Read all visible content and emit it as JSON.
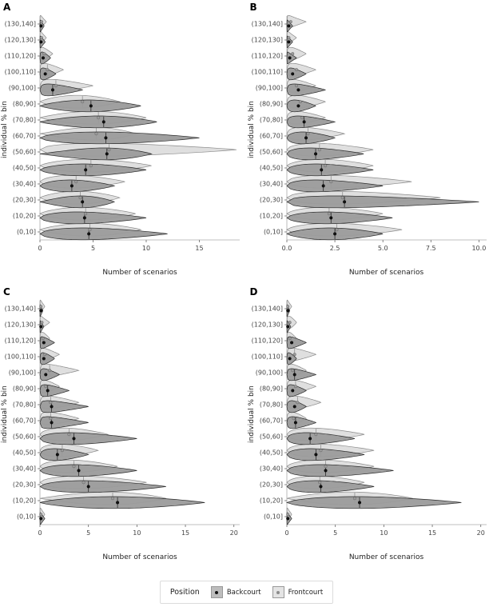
{
  "figure": {
    "legend": {
      "title": "Position",
      "items": [
        {
          "label": "Backcourt"
        },
        {
          "label": "Frontcourt"
        }
      ]
    },
    "colors": {
      "backcourt_fill": "#9b9b9b",
      "backcourt_stroke": "#2a2a2a",
      "backcourt_point": "#111111",
      "frontcourt_fill": "#dcdcdc",
      "frontcourt_stroke": "#8a8a8a",
      "frontcourt_point": "#9a9a9a",
      "axis_text": "#444444",
      "axis_line": "#aaaaaa"
    }
  },
  "violin_format": [
    "max",
    "peak",
    "mean"
  ],
  "chart_data": [
    {
      "panel": "A",
      "type": "violin",
      "xlabel": "Number of scenarios",
      "ylabel": "individual % bin",
      "xlim": [
        0,
        18.8
      ],
      "xticks": [
        0,
        5,
        10,
        15
      ],
      "xtick_labels": [
        "0",
        "5",
        "10",
        "15"
      ],
      "categories": [
        "(130,140]",
        "(120,130]",
        "(110,120]",
        "(100,110]",
        "(90,100]",
        "(80,90]",
        "(70,80]",
        "(60,70]",
        "(50,60]",
        "(40,50]",
        "(30,40]",
        "(20,30]",
        "(10,20]",
        "(0,10]"
      ],
      "series": [
        {
          "name": "Backcourt",
          "violins": [
            [
              0.4,
              0,
              0.1
            ],
            [
              0.5,
              0,
              0.1
            ],
            [
              1.0,
              0.2,
              0.3
            ],
            [
              1.5,
              0.3,
              0.5
            ],
            [
              4.0,
              0.8,
              1.2
            ],
            [
              9.5,
              4.5,
              4.8
            ],
            [
              11.0,
              5.5,
              6.0
            ],
            [
              15.0,
              5.5,
              6.2
            ],
            [
              10.5,
              6.0,
              6.3
            ],
            [
              10.0,
              4.0,
              4.3
            ],
            [
              7.0,
              2.8,
              3.0
            ],
            [
              7.0,
              3.8,
              4.0
            ],
            [
              10.0,
              3.5,
              4.2
            ],
            [
              12.0,
              4.0,
              4.6
            ]
          ]
        },
        {
          "name": "Frontcourt",
          "violins": [
            [
              0.6,
              0,
              0.15
            ],
            [
              0.6,
              0,
              0.15
            ],
            [
              1.2,
              0.2,
              0.4
            ],
            [
              2.2,
              0.4,
              0.7
            ],
            [
              5.0,
              1.0,
              1.5
            ],
            [
              7.5,
              3.5,
              4.0
            ],
            [
              10.0,
              5.0,
              5.5
            ],
            [
              9.0,
              5.0,
              5.3
            ],
            [
              18.5,
              5.5,
              6.5
            ],
            [
              10.5,
              4.5,
              4.8
            ],
            [
              8.0,
              3.0,
              3.4
            ],
            [
              7.5,
              3.5,
              3.8
            ],
            [
              9.0,
              4.0,
              4.3
            ],
            [
              9.5,
              4.5,
              4.7
            ]
          ]
        }
      ]
    },
    {
      "panel": "B",
      "type": "violin",
      "xlabel": "Number of scenarios",
      "ylabel": "individual % bin",
      "xlim": [
        0,
        10.4
      ],
      "xticks": [
        0,
        2.5,
        5,
        7.5,
        10
      ],
      "xtick_labels": [
        "0.0",
        "2.5",
        "5.0",
        "7.5",
        "10.0"
      ],
      "categories": [
        "(130,140]",
        "(120,130]",
        "(110,120]",
        "(100,110]",
        "(90,100]",
        "(80,90]",
        "(70,80]",
        "(60,70]",
        "(50,60]",
        "(40,50]",
        "(30,40]",
        "(20,30]",
        "(10,20]",
        "(0,10]"
      ],
      "series": [
        {
          "name": "Backcourt",
          "violins": [
            [
              0.3,
              0,
              0.1
            ],
            [
              0.3,
              0,
              0.1
            ],
            [
              0.5,
              0,
              0.15
            ],
            [
              1.0,
              0.2,
              0.3
            ],
            [
              2.0,
              0.4,
              0.6
            ],
            [
              1.5,
              0.4,
              0.6
            ],
            [
              2.5,
              0.6,
              0.9
            ],
            [
              2.5,
              0.8,
              1.0
            ],
            [
              4.0,
              1.2,
              1.5
            ],
            [
              4.5,
              1.5,
              1.8
            ],
            [
              5.0,
              1.5,
              1.9
            ],
            [
              10.0,
              2.5,
              3.0
            ],
            [
              5.5,
              2.0,
              2.3
            ],
            [
              5.0,
              2.2,
              2.5
            ]
          ]
        },
        {
          "name": "Frontcourt",
          "violins": [
            [
              1.0,
              0,
              0.2
            ],
            [
              0.5,
              0,
              0.1
            ],
            [
              1.0,
              0.2,
              0.3
            ],
            [
              1.5,
              0.3,
              0.5
            ],
            [
              1.5,
              0.3,
              0.5
            ],
            [
              2.0,
              0.5,
              0.7
            ],
            [
              2.0,
              0.5,
              0.8
            ],
            [
              3.0,
              0.8,
              1.1
            ],
            [
              4.5,
              1.5,
              1.7
            ],
            [
              4.5,
              1.8,
              2.0
            ],
            [
              6.5,
              2.0,
              2.3
            ],
            [
              8.0,
              2.5,
              2.9
            ],
            [
              5.0,
              2.0,
              2.2
            ],
            [
              6.0,
              2.3,
              2.6
            ]
          ]
        }
      ]
    },
    {
      "panel": "C",
      "type": "violin",
      "xlabel": "Number of scenarios",
      "ylabel": "individual % bin",
      "xlim": [
        0,
        20.6
      ],
      "xticks": [
        0,
        5,
        10,
        15,
        20
      ],
      "xtick_labels": [
        "0",
        "5",
        "10",
        "15",
        "20"
      ],
      "categories": [
        "(130,140]",
        "(120,130]",
        "(110,120]",
        "(100,110]",
        "(90,100]",
        "(80,90]",
        "(70,80]",
        "(60,70]",
        "(50,60]",
        "(40,50]",
        "(30,40]",
        "(20,30]",
        "(10,20]",
        "(0,10]"
      ],
      "series": [
        {
          "name": "Backcourt",
          "violins": [
            [
              0.3,
              0,
              0.1
            ],
            [
              0.4,
              0,
              0.1
            ],
            [
              1.5,
              0.2,
              0.4
            ],
            [
              1.5,
              0.3,
              0.4
            ],
            [
              2.0,
              0.4,
              0.6
            ],
            [
              3.0,
              0.5,
              0.8
            ],
            [
              5.0,
              0.8,
              1.2
            ],
            [
              5.0,
              0.8,
              1.2
            ],
            [
              10.0,
              3.0,
              3.5
            ],
            [
              5.0,
              1.5,
              1.8
            ],
            [
              10.0,
              3.5,
              4.0
            ],
            [
              13.0,
              4.5,
              5.0
            ],
            [
              17.0,
              7.5,
              8.0
            ],
            [
              0.5,
              0,
              0.1
            ]
          ]
        },
        {
          "name": "Frontcourt",
          "violins": [
            [
              0.5,
              0,
              0.1
            ],
            [
              1.0,
              0,
              0.2
            ],
            [
              1.0,
              0.2,
              0.3
            ],
            [
              2.0,
              0.3,
              0.5
            ],
            [
              4.0,
              0.6,
              1.0
            ],
            [
              2.0,
              0.4,
              0.6
            ],
            [
              4.0,
              0.8,
              1.1
            ],
            [
              4.0,
              0.8,
              1.1
            ],
            [
              7.0,
              2.5,
              3.0
            ],
            [
              6.0,
              2.0,
              2.3
            ],
            [
              8.0,
              3.0,
              3.5
            ],
            [
              11.0,
              4.0,
              4.5
            ],
            [
              13.0,
              7.0,
              7.5
            ],
            [
              0.5,
              0,
              0.1
            ]
          ]
        }
      ]
    },
    {
      "panel": "D",
      "type": "violin",
      "xlabel": "Number of scenarios",
      "ylabel": "individual % bin",
      "xlim": [
        0,
        20.6
      ],
      "xticks": [
        0,
        5,
        10,
        15,
        20
      ],
      "xtick_labels": [
        "0",
        "5",
        "10",
        "15",
        "20"
      ],
      "categories": [
        "(130,140]",
        "(120,130]",
        "(110,120]",
        "(100,110]",
        "(90,100]",
        "(80,90]",
        "(70,80]",
        "(60,70]",
        "(50,60]",
        "(40,50]",
        "(30,40]",
        "(20,30]",
        "(10,20]",
        "(0,10]"
      ],
      "series": [
        {
          "name": "Backcourt",
          "violins": [
            [
              0.3,
              0,
              0.1
            ],
            [
              0.4,
              0,
              0.1
            ],
            [
              2.0,
              0.3,
              0.5
            ],
            [
              1.0,
              0.2,
              0.3
            ],
            [
              3.0,
              0.5,
              0.8
            ],
            [
              2.0,
              0.4,
              0.6
            ],
            [
              2.0,
              0.5,
              0.8
            ],
            [
              3.0,
              0.6,
              0.9
            ],
            [
              7.0,
              2.0,
              2.4
            ],
            [
              8.0,
              2.5,
              3.0
            ],
            [
              11.0,
              3.5,
              4.0
            ],
            [
              9.0,
              3.0,
              3.5
            ],
            [
              18.0,
              7.0,
              7.5
            ],
            [
              0.5,
              0,
              0.1
            ]
          ]
        },
        {
          "name": "Frontcourt",
          "violins": [
            [
              0.5,
              0,
              0.1
            ],
            [
              1.0,
              0.2,
              0.3
            ],
            [
              1.0,
              0.2,
              0.3
            ],
            [
              3.0,
              0.5,
              0.8
            ],
            [
              2.0,
              0.4,
              0.6
            ],
            [
              3.0,
              0.6,
              0.9
            ],
            [
              3.5,
              0.8,
              1.1
            ],
            [
              2.0,
              0.5,
              0.7
            ],
            [
              8.0,
              2.5,
              3.0
            ],
            [
              9.0,
              3.0,
              3.5
            ],
            [
              9.0,
              3.5,
              4.0
            ],
            [
              8.0,
              3.0,
              3.4
            ],
            [
              13.0,
              6.5,
              7.0
            ],
            [
              0.5,
              0,
              0.1
            ]
          ]
        }
      ]
    }
  ]
}
